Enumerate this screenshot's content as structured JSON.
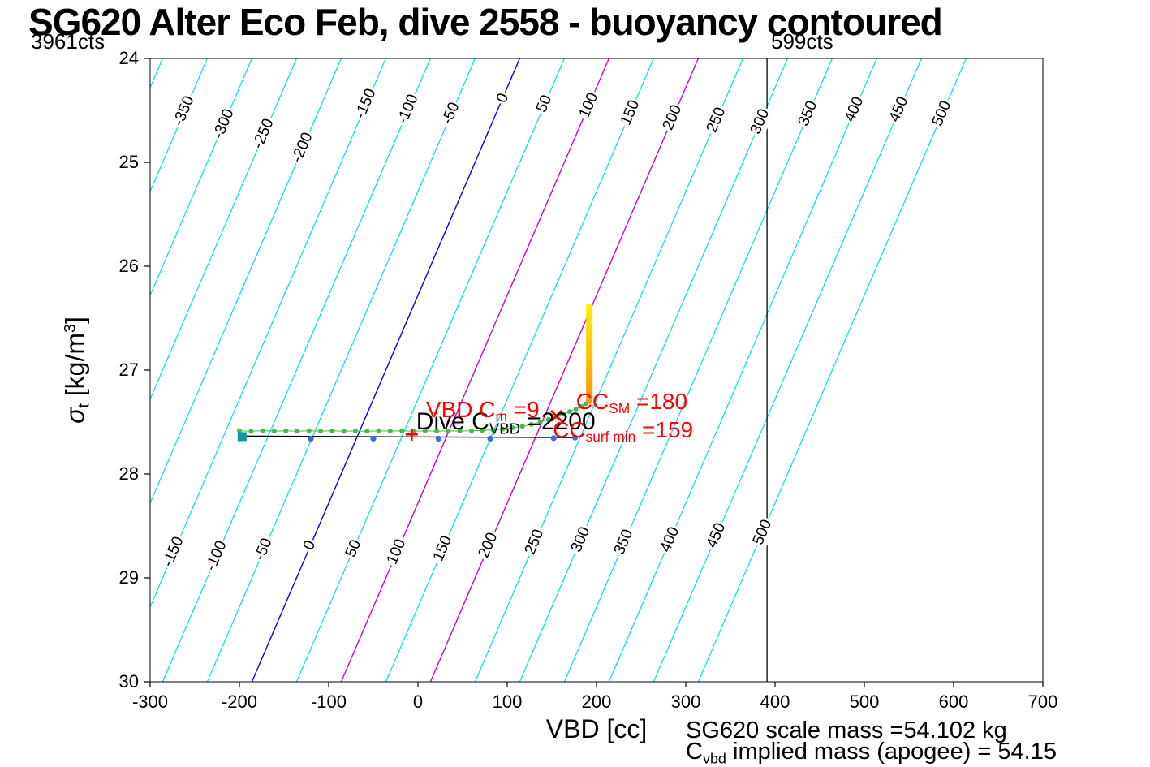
{
  "corner_labels": {
    "left": "3961cts",
    "right": "599cts"
  },
  "footer": {
    "line1": "SG620 scale mass =54.102 kg",
    "line2_parts": [
      {
        "t": "C"
      },
      {
        "t": "vbd",
        "sub": true
      },
      {
        "t": " implied mass (apogee) = 54.15"
      }
    ]
  },
  "chart_data": {
    "type": "line",
    "title": "SG620 Alter Eco Feb, dive 2558 - buoyancy contoured",
    "xlabel": "VBD [cc]",
    "ylabel_parts": [
      {
        "t": "σ",
        "italic": true
      },
      {
        "t": "t",
        "sub": true
      },
      {
        "t": " [kg/m"
      },
      {
        "t": "3",
        "sup": true
      },
      {
        "t": "]"
      }
    ],
    "xlim": [
      -300,
      700
    ],
    "ylim": [
      24,
      30
    ],
    "y_axis_reversed": true,
    "grid": false,
    "x_ticks": [
      -300,
      -200,
      -100,
      0,
      100,
      200,
      300,
      400,
      500,
      600,
      700
    ],
    "y_ticks": [
      24,
      25,
      26,
      27,
      28,
      29,
      30
    ],
    "colors": {
      "contour": "#00e0ea",
      "contour_zero": "#0000f0",
      "contour_highlight": "#d400d8",
      "reference_line": "#000000",
      "dive_line": "#000000",
      "dive_samples": "#3a6fd8",
      "climb_samples": "#46b946",
      "apogee_top": "#ffee00",
      "apogee_bottom": "#ff9500",
      "annotation_red": "#ff0000"
    },
    "contours": {
      "levels": [
        -500,
        -450,
        -400,
        -350,
        -300,
        -250,
        -200,
        -150,
        -100,
        -50,
        0,
        50,
        100,
        150,
        200,
        250,
        300,
        350,
        400,
        450,
        500
      ],
      "zero_level": 0,
      "highlight_levels": [
        100,
        200
      ],
      "equation": "level = VBD + 50*(sigma_t - 26.28)",
      "dVBD_dsigma": -50,
      "sigma_ref": 26.28,
      "top_labels": [
        {
          "v": -350,
          "sigma": 24.51
        },
        {
          "v": -300,
          "sigma": 24.63
        },
        {
          "v": -250,
          "sigma": 24.73
        },
        {
          "v": -200,
          "sigma": 24.86
        },
        {
          "v": -150,
          "sigma": 24.44
        },
        {
          "v": -100,
          "sigma": 24.49
        },
        {
          "v": -50,
          "sigma": 24.53
        },
        {
          "v": 0,
          "sigma": 24.38
        },
        {
          "v": 50,
          "sigma": 24.44
        },
        {
          "v": 100,
          "sigma": 24.45
        },
        {
          "v": 150,
          "sigma": 24.52
        },
        {
          "v": 200,
          "sigma": 24.57
        },
        {
          "v": 250,
          "sigma": 24.59
        },
        {
          "v": 300,
          "sigma": 24.61
        },
        {
          "v": 350,
          "sigma": 24.53
        },
        {
          "v": 400,
          "sigma": 24.49
        },
        {
          "v": 450,
          "sigma": 24.49
        },
        {
          "v": 500,
          "sigma": 24.53
        }
      ],
      "bottom_labels": [
        {
          "v": -150,
          "sigma": 28.75
        },
        {
          "v": -100,
          "sigma": 28.79
        },
        {
          "v": -50,
          "sigma": 28.73
        },
        {
          "v": 0,
          "sigma": 28.69
        },
        {
          "v": 50,
          "sigma": 28.72
        },
        {
          "v": 100,
          "sigma": 28.75
        },
        {
          "v": 150,
          "sigma": 28.72
        },
        {
          "v": 200,
          "sigma": 28.69
        },
        {
          "v": 250,
          "sigma": 28.66
        },
        {
          "v": 300,
          "sigma": 28.63
        },
        {
          "v": 350,
          "sigma": 28.66
        },
        {
          "v": 400,
          "sigma": 28.63
        },
        {
          "v": 450,
          "sigma": 28.59
        },
        {
          "v": 500,
          "sigma": 28.56
        }
      ]
    },
    "reference_line": {
      "x": 391,
      "label": "599cts"
    },
    "series": [
      {
        "name": "dive-track",
        "type": "line",
        "color_key": "dive_line",
        "width": 1.4,
        "points": [
          [
            -200,
            27.635
          ],
          [
            178,
            27.65
          ]
        ]
      },
      {
        "name": "dive-samples",
        "type": "scatter",
        "color_key": "dive_samples",
        "radius": 3.6,
        "points": [
          [
            -120,
            27.66
          ],
          [
            -50,
            27.66
          ],
          [
            23,
            27.66
          ],
          [
            81,
            27.66
          ],
          [
            152,
            27.655
          ],
          [
            176,
            27.65
          ]
        ]
      },
      {
        "name": "climb-track",
        "type": "line_scatter",
        "color_key": "climb_samples",
        "radius": 3,
        "line_width": 1,
        "points": [
          [
            -200,
            27.585
          ],
          [
            -187,
            27.588
          ],
          [
            -174,
            27.583
          ],
          [
            -161,
            27.588
          ],
          [
            -148,
            27.584
          ],
          [
            -135,
            27.588
          ],
          [
            -122,
            27.584
          ],
          [
            -109,
            27.587
          ],
          [
            -96,
            27.584
          ],
          [
            -83,
            27.588
          ],
          [
            -70,
            27.585
          ],
          [
            -57,
            27.588
          ],
          [
            -44,
            27.584
          ],
          [
            -31,
            27.587
          ],
          [
            -18,
            27.584
          ],
          [
            -5,
            27.587
          ],
          [
            8,
            27.585
          ],
          [
            21,
            27.588
          ],
          [
            34,
            27.585
          ],
          [
            47,
            27.586
          ],
          [
            60,
            27.584
          ],
          [
            72,
            27.58
          ],
          [
            84,
            27.574
          ],
          [
            95,
            27.567
          ],
          [
            106,
            27.556
          ],
          [
            117,
            27.541
          ],
          [
            127,
            27.522
          ],
          [
            137,
            27.5
          ],
          [
            146,
            27.476
          ],
          [
            155,
            27.45
          ],
          [
            163,
            27.424
          ],
          [
            170,
            27.399
          ],
          [
            177,
            27.374
          ],
          [
            183,
            27.349
          ],
          [
            188,
            27.324
          ],
          [
            192,
            27.3
          ]
        ]
      },
      {
        "name": "apogee-segment",
        "type": "gradient_bar",
        "from": [
          192,
          26.39
        ],
        "to": [
          192,
          27.295
        ],
        "width": 8
      }
    ],
    "markers": [
      {
        "name": "surface-point-marker",
        "shape": "square",
        "x": -197,
        "sigma": 27.64,
        "color": "#009b9b",
        "size": 11
      },
      {
        "name": "reference-plus-marker",
        "shape": "plus",
        "x": -7,
        "sigma": 27.62,
        "color": "#ff0000",
        "size": 15
      },
      {
        "name": "cm-cross-marker",
        "shape": "cross",
        "x": 155,
        "sigma": 27.44,
        "color": "#ff0000",
        "size": 13
      }
    ],
    "annotations": [
      {
        "name": "dive-cvbd-annotation",
        "color": "#000000",
        "size": 30,
        "x": -2,
        "sigma_top": 27.37,
        "parts": [
          {
            "t": "Dive C"
          },
          {
            "t": "VBD",
            "sub": true
          },
          {
            "t": " =2200"
          }
        ]
      },
      {
        "name": "vbd-cm-annotation",
        "color": "#ff0000",
        "size": 28,
        "x": 9,
        "sigma_top": 27.26,
        "parts": [
          {
            "t": "VBD C"
          },
          {
            "t": "m",
            "sub": true
          },
          {
            "t": " =9"
          }
        ]
      },
      {
        "name": "cc-sm-annotation",
        "color": "#ff0000",
        "size": 28,
        "x": 177,
        "sigma_top": 27.18,
        "parts": [
          {
            "t": "CC"
          },
          {
            "t": "SM",
            "sub": true
          },
          {
            "t": " =180"
          }
        ]
      },
      {
        "name": "cc-surf-min-annotation",
        "color": "#ff0000",
        "size": 28,
        "x": 151,
        "sigma_top": 27.45,
        "parts": [
          {
            "t": "CC"
          },
          {
            "t": "surf min",
            "sub": true
          },
          {
            "t": " =159"
          }
        ]
      }
    ]
  }
}
